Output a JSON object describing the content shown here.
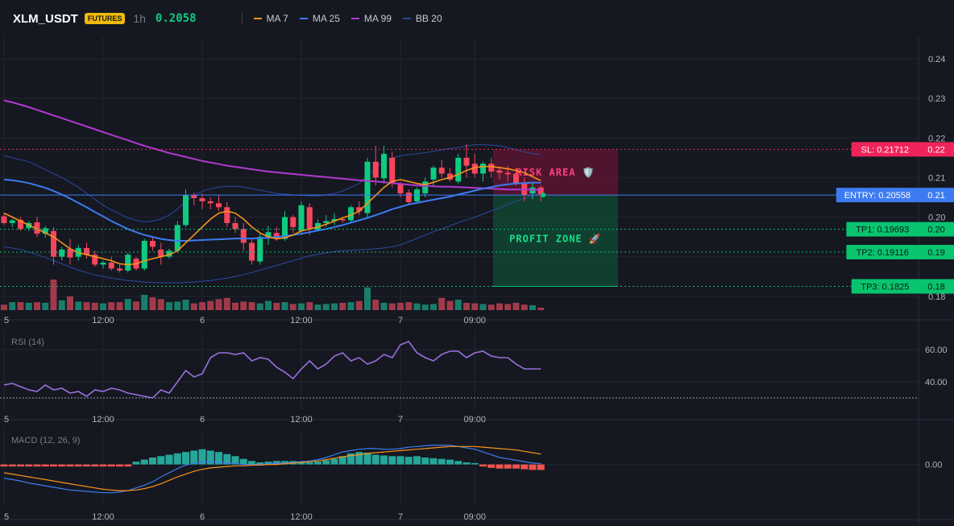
{
  "header": {
    "symbol": "XLM_USDT",
    "badge": "FUTURES",
    "timeframe": "1h",
    "price": "0.2058",
    "indicators": [
      {
        "label": "MA 7",
        "color": "#f7931a"
      },
      {
        "label": "MA 25",
        "color": "#3d7bf2"
      },
      {
        "label": "MA 99",
        "color": "#b03ad1"
      },
      {
        "label": "BB 20",
        "color": "#2a4aa0"
      }
    ]
  },
  "colors": {
    "up": "#0ecb81",
    "down": "#f6465d",
    "vol_up": "#1a7d6a",
    "vol_down": "#a03a4a",
    "entry": "#3d7bf2",
    "sl": "#f0245a",
    "tp": "#08c46f",
    "rsi": "#9b6fdb",
    "macd": "#3d7bf2",
    "signal": "#f7931a"
  },
  "zones": {
    "risk_label": "RISK AREA 🛡️",
    "profit_label": "PROFIT ZONE 🚀"
  },
  "levels": [
    {
      "id": "sl",
      "label": "SL: 0.21712",
      "tag": "0.22",
      "value": 0.21712
    },
    {
      "id": "entry",
      "label": "ENTRY: 0.20558",
      "tag": "0.21",
      "value": 0.20558
    },
    {
      "id": "tp1",
      "label": "TP1: 0.19693",
      "tag": "0.20",
      "value": 0.19693
    },
    {
      "id": "tp2",
      "label": "TP2: 0.19116",
      "tag": "0.19",
      "value": 0.19116
    },
    {
      "id": "tp3",
      "label": "TP3: 0.1825",
      "tag": "0.18",
      "value": 0.1825
    }
  ],
  "time_labels": [
    {
      "label": "5",
      "index": 0
    },
    {
      "label": "12:00",
      "index": 12
    },
    {
      "label": "6",
      "index": 24
    },
    {
      "label": "12:00",
      "index": 36
    },
    {
      "label": "7",
      "index": 48
    },
    {
      "label": "09:00",
      "index": 57
    }
  ],
  "chart_data": [
    {
      "type": "candlestick",
      "title": "",
      "y_ticks": [
        0.24,
        0.23,
        0.22,
        0.21,
        0.2,
        0.19,
        0.18
      ],
      "ylim": [
        0.1765,
        0.2455
      ],
      "grid": true,
      "candles": [
        {
          "o": 0.2002,
          "h": 0.201,
          "l": 0.198,
          "c": 0.1985
        },
        {
          "o": 0.1985,
          "h": 0.1995,
          "l": 0.1975,
          "c": 0.1992
        },
        {
          "o": 0.1993,
          "h": 0.2,
          "l": 0.1965,
          "c": 0.197
        },
        {
          "o": 0.1972,
          "h": 0.199,
          "l": 0.1965,
          "c": 0.1985
        },
        {
          "o": 0.1987,
          "h": 0.2,
          "l": 0.195,
          "c": 0.1958
        },
        {
          "o": 0.1958,
          "h": 0.1978,
          "l": 0.1948,
          "c": 0.1972
        },
        {
          "o": 0.1965,
          "h": 0.1975,
          "l": 0.188,
          "c": 0.19
        },
        {
          "o": 0.19,
          "h": 0.1925,
          "l": 0.189,
          "c": 0.1918
        },
        {
          "o": 0.192,
          "h": 0.1945,
          "l": 0.188,
          "c": 0.1898
        },
        {
          "o": 0.19,
          "h": 0.193,
          "l": 0.189,
          "c": 0.1922
        },
        {
          "o": 0.1922,
          "h": 0.1935,
          "l": 0.1895,
          "c": 0.1905
        },
        {
          "o": 0.1905,
          "h": 0.1915,
          "l": 0.1875,
          "c": 0.188
        },
        {
          "o": 0.188,
          "h": 0.189,
          "l": 0.187,
          "c": 0.1885
        },
        {
          "o": 0.1885,
          "h": 0.19,
          "l": 0.1865,
          "c": 0.187
        },
        {
          "o": 0.187,
          "h": 0.188,
          "l": 0.186,
          "c": 0.1865
        },
        {
          "o": 0.1865,
          "h": 0.191,
          "l": 0.186,
          "c": 0.1905
        },
        {
          "o": 0.1895,
          "h": 0.19,
          "l": 0.1865,
          "c": 0.187
        },
        {
          "o": 0.187,
          "h": 0.1945,
          "l": 0.1865,
          "c": 0.194
        },
        {
          "o": 0.194,
          "h": 0.195,
          "l": 0.1915,
          "c": 0.1925
        },
        {
          "o": 0.1918,
          "h": 0.1935,
          "l": 0.188,
          "c": 0.19
        },
        {
          "o": 0.19,
          "h": 0.192,
          "l": 0.1895,
          "c": 0.1915
        },
        {
          "o": 0.1915,
          "h": 0.199,
          "l": 0.191,
          "c": 0.198
        },
        {
          "o": 0.198,
          "h": 0.207,
          "l": 0.1975,
          "c": 0.2055
        },
        {
          "o": 0.2055,
          "h": 0.2062,
          "l": 0.203,
          "c": 0.2048
        },
        {
          "o": 0.2048,
          "h": 0.206,
          "l": 0.202,
          "c": 0.204
        },
        {
          "o": 0.204,
          "h": 0.205,
          "l": 0.202,
          "c": 0.2035
        },
        {
          "o": 0.2035,
          "h": 0.2055,
          "l": 0.2015,
          "c": 0.2025
        },
        {
          "o": 0.2025,
          "h": 0.2038,
          "l": 0.1975,
          "c": 0.1985
        },
        {
          "o": 0.1985,
          "h": 0.2,
          "l": 0.196,
          "c": 0.197
        },
        {
          "o": 0.197,
          "h": 0.1985,
          "l": 0.1915,
          "c": 0.1935
        },
        {
          "o": 0.1935,
          "h": 0.1945,
          "l": 0.188,
          "c": 0.189
        },
        {
          "o": 0.1888,
          "h": 0.1958,
          "l": 0.188,
          "c": 0.195
        },
        {
          "o": 0.195,
          "h": 0.1978,
          "l": 0.193,
          "c": 0.1962
        },
        {
          "o": 0.196,
          "h": 0.1975,
          "l": 0.194,
          "c": 0.1945
        },
        {
          "o": 0.1945,
          "h": 0.2015,
          "l": 0.194,
          "c": 0.2
        },
        {
          "o": 0.2,
          "h": 0.2005,
          "l": 0.196,
          "c": 0.1975
        },
        {
          "o": 0.1965,
          "h": 0.204,
          "l": 0.1955,
          "c": 0.203
        },
        {
          "o": 0.2025,
          "h": 0.2035,
          "l": 0.1955,
          "c": 0.197
        },
        {
          "o": 0.1968,
          "h": 0.1995,
          "l": 0.1965,
          "c": 0.1985
        },
        {
          "o": 0.1985,
          "h": 0.2005,
          "l": 0.1975,
          "c": 0.199
        },
        {
          "o": 0.199,
          "h": 0.201,
          "l": 0.198,
          "c": 0.1995
        },
        {
          "o": 0.1995,
          "h": 0.2,
          "l": 0.1985,
          "c": 0.1992
        },
        {
          "o": 0.1992,
          "h": 0.203,
          "l": 0.1985,
          "c": 0.2025
        },
        {
          "o": 0.2025,
          "h": 0.204,
          "l": 0.2005,
          "c": 0.2015
        },
        {
          "o": 0.201,
          "h": 0.215,
          "l": 0.2,
          "c": 0.214
        },
        {
          "o": 0.214,
          "h": 0.218,
          "l": 0.208,
          "c": 0.21
        },
        {
          "o": 0.2098,
          "h": 0.218,
          "l": 0.2085,
          "c": 0.216
        },
        {
          "o": 0.215,
          "h": 0.2165,
          "l": 0.2075,
          "c": 0.2085
        },
        {
          "o": 0.2085,
          "h": 0.209,
          "l": 0.205,
          "c": 0.206
        },
        {
          "o": 0.2062,
          "h": 0.207,
          "l": 0.203,
          "c": 0.2038
        },
        {
          "o": 0.204,
          "h": 0.2075,
          "l": 0.2035,
          "c": 0.207
        },
        {
          "o": 0.206,
          "h": 0.21,
          "l": 0.205,
          "c": 0.209
        },
        {
          "o": 0.2095,
          "h": 0.213,
          "l": 0.208,
          "c": 0.2125
        },
        {
          "o": 0.2125,
          "h": 0.2145,
          "l": 0.21,
          "c": 0.211
        },
        {
          "o": 0.211,
          "h": 0.2125,
          "l": 0.209,
          "c": 0.2095
        },
        {
          "o": 0.209,
          "h": 0.216,
          "l": 0.2085,
          "c": 0.215
        },
        {
          "o": 0.215,
          "h": 0.2185,
          "l": 0.21,
          "c": 0.213
        },
        {
          "o": 0.2135,
          "h": 0.216,
          "l": 0.21,
          "c": 0.211
        },
        {
          "o": 0.211,
          "h": 0.214,
          "l": 0.209,
          "c": 0.2135
        },
        {
          "o": 0.2135,
          "h": 0.215,
          "l": 0.21,
          "c": 0.2115
        },
        {
          "o": 0.2118,
          "h": 0.2125,
          "l": 0.2095,
          "c": 0.2112
        },
        {
          "o": 0.2112,
          "h": 0.213,
          "l": 0.209,
          "c": 0.2108
        },
        {
          "o": 0.211,
          "h": 0.2125,
          "l": 0.208,
          "c": 0.2085
        },
        {
          "o": 0.2085,
          "h": 0.21,
          "l": 0.204,
          "c": 0.2055
        },
        {
          "o": 0.206,
          "h": 0.2085,
          "l": 0.2045,
          "c": 0.2075
        },
        {
          "o": 0.2075,
          "h": 0.208,
          "l": 0.204,
          "c": 0.2058
        }
      ],
      "volume": [
        0.18,
        0.26,
        0.26,
        0.24,
        0.26,
        0.24,
        1.0,
        0.32,
        0.45,
        0.28,
        0.26,
        0.24,
        0.22,
        0.26,
        0.26,
        0.36,
        0.28,
        0.5,
        0.42,
        0.36,
        0.26,
        0.28,
        0.34,
        0.22,
        0.26,
        0.3,
        0.36,
        0.4,
        0.24,
        0.28,
        0.26,
        0.22,
        0.3,
        0.24,
        0.26,
        0.2,
        0.22,
        0.26,
        0.18,
        0.2,
        0.22,
        0.24,
        0.26,
        0.3,
        0.74,
        0.34,
        0.24,
        0.22,
        0.24,
        0.26,
        0.22,
        0.18,
        0.2,
        0.4,
        0.3,
        0.34,
        0.24,
        0.22,
        0.2,
        0.18,
        0.22,
        0.2,
        0.24,
        0.18,
        0.16,
        0.08
      ],
      "ma7": [
        0.201,
        0.2,
        0.199,
        0.198,
        0.197,
        0.196,
        0.195,
        0.1935,
        0.192,
        0.191,
        0.1905,
        0.19,
        0.1895,
        0.189,
        0.1882,
        0.188,
        0.1882,
        0.189,
        0.1895,
        0.19,
        0.1905,
        0.1915,
        0.1935,
        0.1955,
        0.1975,
        0.1995,
        0.201,
        0.2015,
        0.201,
        0.1995,
        0.1975,
        0.196,
        0.195,
        0.1945,
        0.1948,
        0.1955,
        0.1965,
        0.197,
        0.1975,
        0.1982,
        0.199,
        0.1998,
        0.2005,
        0.2015,
        0.2035,
        0.2055,
        0.2075,
        0.209,
        0.2095,
        0.209,
        0.2085,
        0.2082,
        0.2088,
        0.2095,
        0.21,
        0.2108,
        0.2118,
        0.2125,
        0.2128,
        0.2128,
        0.2125,
        0.2122,
        0.2118,
        0.2112,
        0.2102,
        0.2092
      ],
      "ma25": [
        0.2095,
        0.2093,
        0.209,
        0.2086,
        0.208,
        0.2074,
        0.2066,
        0.2057,
        0.2047,
        0.2036,
        0.2025,
        0.2013,
        0.2002,
        0.199,
        0.198,
        0.197,
        0.1962,
        0.1955,
        0.195,
        0.1945,
        0.1942,
        0.194,
        0.194,
        0.1941,
        0.1942,
        0.1943,
        0.1944,
        0.1945,
        0.1946,
        0.1946,
        0.1946,
        0.1947,
        0.1948,
        0.195,
        0.1952,
        0.1955,
        0.1958,
        0.1962,
        0.1966,
        0.197,
        0.1975,
        0.198,
        0.1986,
        0.1992,
        0.1998,
        0.2005,
        0.2012,
        0.202,
        0.2026,
        0.2032,
        0.2036,
        0.204,
        0.2044,
        0.2048,
        0.2052,
        0.2057,
        0.2062,
        0.2067,
        0.2072,
        0.2076,
        0.208,
        0.2083,
        0.2085,
        0.2086,
        0.2087,
        0.2087
      ],
      "ma99": [
        0.2295,
        0.229,
        0.2284,
        0.2278,
        0.2271,
        0.2264,
        0.2257,
        0.225,
        0.2243,
        0.2236,
        0.2229,
        0.2222,
        0.2215,
        0.2208,
        0.2201,
        0.2194,
        0.2187,
        0.218,
        0.2174,
        0.2168,
        0.2162,
        0.2157,
        0.2152,
        0.2147,
        0.2142,
        0.2138,
        0.2134,
        0.213,
        0.2127,
        0.2124,
        0.2121,
        0.2118,
        0.2115,
        0.2113,
        0.2111,
        0.2109,
        0.2107,
        0.2105,
        0.2103,
        0.2101,
        0.2099,
        0.2097,
        0.2095,
        0.2093,
        0.2091,
        0.209,
        0.2088,
        0.2086,
        0.2084,
        0.2082,
        0.208,
        0.2079,
        0.2078,
        0.2077,
        0.2077,
        0.2076,
        0.2075,
        0.2074,
        0.2073,
        0.2072,
        0.2071,
        0.207,
        0.207,
        0.207,
        0.2069,
        0.2069
      ],
      "bb_upper": [
        0.2155,
        0.215,
        0.2145,
        0.214,
        0.213,
        0.212,
        0.211,
        0.21,
        0.2088,
        0.2075,
        0.206,
        0.2045,
        0.203,
        0.2018,
        0.2008,
        0.1998,
        0.1992,
        0.1988,
        0.199,
        0.1995,
        0.2005,
        0.202,
        0.204,
        0.2055,
        0.2065,
        0.2072,
        0.2076,
        0.2078,
        0.2078,
        0.2076,
        0.2072,
        0.2068,
        0.2064,
        0.206,
        0.2058,
        0.2056,
        0.2055,
        0.2054,
        0.2054,
        0.2056,
        0.206,
        0.2066,
        0.2075,
        0.2085,
        0.2105,
        0.2125,
        0.214,
        0.215,
        0.2155,
        0.2158,
        0.216,
        0.2163,
        0.2166,
        0.217,
        0.2173,
        0.2176,
        0.218,
        0.2183,
        0.2183,
        0.2182,
        0.218,
        0.2176,
        0.217,
        0.2165,
        0.216,
        0.2158
      ],
      "bb_lower": [
        0.1925,
        0.1922,
        0.1918,
        0.1912,
        0.1905,
        0.1898,
        0.189,
        0.1882,
        0.1874,
        0.1866,
        0.186,
        0.1854,
        0.185,
        0.1846,
        0.1843,
        0.184,
        0.1838,
        0.1836,
        0.1835,
        0.1834,
        0.1834,
        0.1834,
        0.1835,
        0.1836,
        0.1838,
        0.184,
        0.1843,
        0.1846,
        0.185,
        0.1855,
        0.186,
        0.1866,
        0.1872,
        0.1878,
        0.1884,
        0.189,
        0.1896,
        0.1902,
        0.1906,
        0.191,
        0.1913,
        0.1915,
        0.1916,
        0.1917,
        0.1918,
        0.192,
        0.1922,
        0.1925,
        0.193,
        0.1938,
        0.1946,
        0.1955,
        0.1963,
        0.197,
        0.1978,
        0.1986,
        0.1993,
        0.2,
        0.2008,
        0.2016,
        0.2024,
        0.2032,
        0.204,
        0.2048,
        0.2055,
        0.206
      ]
    },
    {
      "type": "line",
      "title": "RSI (14)",
      "y_ticks": [
        60.0,
        40.0
      ],
      "ylim": [
        23,
        72
      ],
      "dotted_level": 30,
      "values": [
        38,
        39,
        37,
        35,
        34,
        38,
        35,
        36,
        33,
        34,
        31,
        35,
        34,
        36,
        35,
        33,
        32,
        31,
        30,
        35,
        33,
        40,
        47,
        43,
        45,
        55,
        58,
        58,
        57,
        58,
        53,
        55,
        54,
        49,
        46,
        42,
        48,
        53,
        48,
        51,
        56,
        58,
        53,
        55,
        51,
        53,
        57,
        55,
        63,
        65,
        58,
        55,
        53,
        57,
        59,
        59,
        55,
        58,
        59,
        56,
        55,
        55,
        51,
        48,
        48,
        48
      ]
    },
    {
      "type": "bar",
      "title": "MACD (12, 26, 9)",
      "y_ticks": [
        0.0
      ],
      "ylim": [
        -0.006,
        0.0052
      ],
      "histogram": [
        -0.0003,
        -0.0003,
        -0.0003,
        -0.0003,
        -0.0003,
        -0.0003,
        -0.0003,
        -0.0003,
        -0.0003,
        -0.0003,
        -0.0003,
        -0.0003,
        -0.0003,
        -0.0003,
        -0.0003,
        -0.0003,
        0.0004,
        0.0007,
        0.001,
        0.0012,
        0.0014,
        0.0016,
        0.0018,
        0.002,
        0.0022,
        0.002,
        0.0018,
        0.0015,
        0.0012,
        0.0008,
        0.0005,
        0.0003,
        0.0004,
        0.0005,
        0.0005,
        0.0005,
        0.0004,
        0.0003,
        0.0004,
        0.0006,
        0.0008,
        0.0012,
        0.0016,
        0.0018,
        0.0017,
        0.0014,
        0.0013,
        0.0012,
        0.0012,
        0.0011,
        0.0012,
        0.001,
        0.0009,
        0.0008,
        0.0007,
        0.0005,
        0.0003,
        0.0002,
        -0.0003,
        -0.0005,
        -0.0006,
        -0.0006,
        -0.0006,
        -0.0007,
        -0.0008,
        -0.0008
      ],
      "macd": [
        -0.002,
        -0.0022,
        -0.0024,
        -0.0027,
        -0.0029,
        -0.0031,
        -0.0033,
        -0.0035,
        -0.0037,
        -0.0038,
        -0.0039,
        -0.004,
        -0.0041,
        -0.0041,
        -0.004,
        -0.0038,
        -0.0034,
        -0.003,
        -0.0025,
        -0.0018,
        -0.0012,
        -0.0006,
        -0.0001,
        0.0002,
        0.0003,
        0.0004,
        0.0003,
        0.0002,
        0.0001,
        0.0,
        0.0,
        0.0,
        0.0001,
        0.0002,
        0.0002,
        0.0003,
        0.0004,
        0.0005,
        0.0007,
        0.001,
        0.0014,
        0.0018,
        0.002,
        0.0022,
        0.0023,
        0.0023,
        0.0022,
        0.0022,
        0.0023,
        0.0025,
        0.0026,
        0.0027,
        0.0028,
        0.0028,
        0.0028,
        0.0026,
        0.0024,
        0.0022,
        0.0018,
        0.0014,
        0.001,
        0.0008,
        0.0006,
        0.0004,
        0.0002,
        0.0001
      ],
      "signal": [
        -0.0012,
        -0.0014,
        -0.0016,
        -0.0018,
        -0.002,
        -0.0022,
        -0.0024,
        -0.0026,
        -0.0028,
        -0.003,
        -0.0032,
        -0.0034,
        -0.0036,
        -0.0037,
        -0.0038,
        -0.0038,
        -0.0037,
        -0.0035,
        -0.0032,
        -0.0028,
        -0.0023,
        -0.0018,
        -0.0014,
        -0.001,
        -0.0007,
        -0.0005,
        -0.0004,
        -0.0003,
        -0.0002,
        -0.0002,
        -0.0001,
        -0.0001,
        0.0,
        0.0,
        0.0001,
        0.0002,
        0.0003,
        0.0004,
        0.0005,
        0.0007,
        0.0009,
        0.0011,
        0.0013,
        0.0014,
        0.0016,
        0.0017,
        0.0018,
        0.0019,
        0.002,
        0.0021,
        0.0022,
        0.0023,
        0.0024,
        0.0025,
        0.0026,
        0.0026,
        0.0026,
        0.0026,
        0.0025,
        0.0024,
        0.0023,
        0.0022,
        0.0021,
        0.0019,
        0.0017,
        0.0015
      ]
    }
  ]
}
